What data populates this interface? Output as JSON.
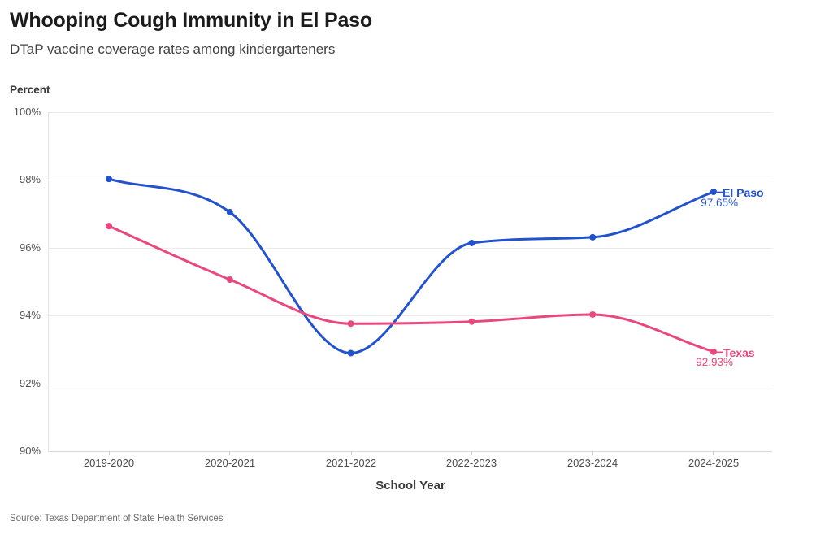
{
  "chart_data": {
    "type": "line",
    "title": "Whooping Cough Immunity in El Paso",
    "subtitle": "DTaP vaccine coverage rates among kindergarteners",
    "ylabel": "Percent",
    "xlabel": "School Year",
    "ylim": [
      90,
      100
    ],
    "grid": true,
    "legend_position": "end-of-line",
    "categories": [
      "2019-2020",
      "2020-2021",
      "2021-2022",
      "2022-2023",
      "2023-2024",
      "2024-2025"
    ],
    "ytick_labels": [
      "100%",
      "98%",
      "96%",
      "94%",
      "92%",
      "90%"
    ],
    "ytick_values": [
      100,
      98,
      96,
      94,
      92,
      90
    ],
    "series": [
      {
        "name": "El Paso",
        "color": "#2253cc",
        "values": [
          98.03,
          97.05,
          92.89,
          96.14,
          96.31,
          97.65
        ],
        "end_label": "El Paso",
        "end_value_label": "97.65%"
      },
      {
        "name": "Texas",
        "color": "#e9487f",
        "values": [
          96.64,
          95.06,
          93.76,
          93.82,
          94.03,
          92.93
        ],
        "end_label": "Texas",
        "end_value_label": "92.93%"
      }
    ]
  },
  "footer": {
    "source": "Source: Texas Department of State Health Services"
  }
}
